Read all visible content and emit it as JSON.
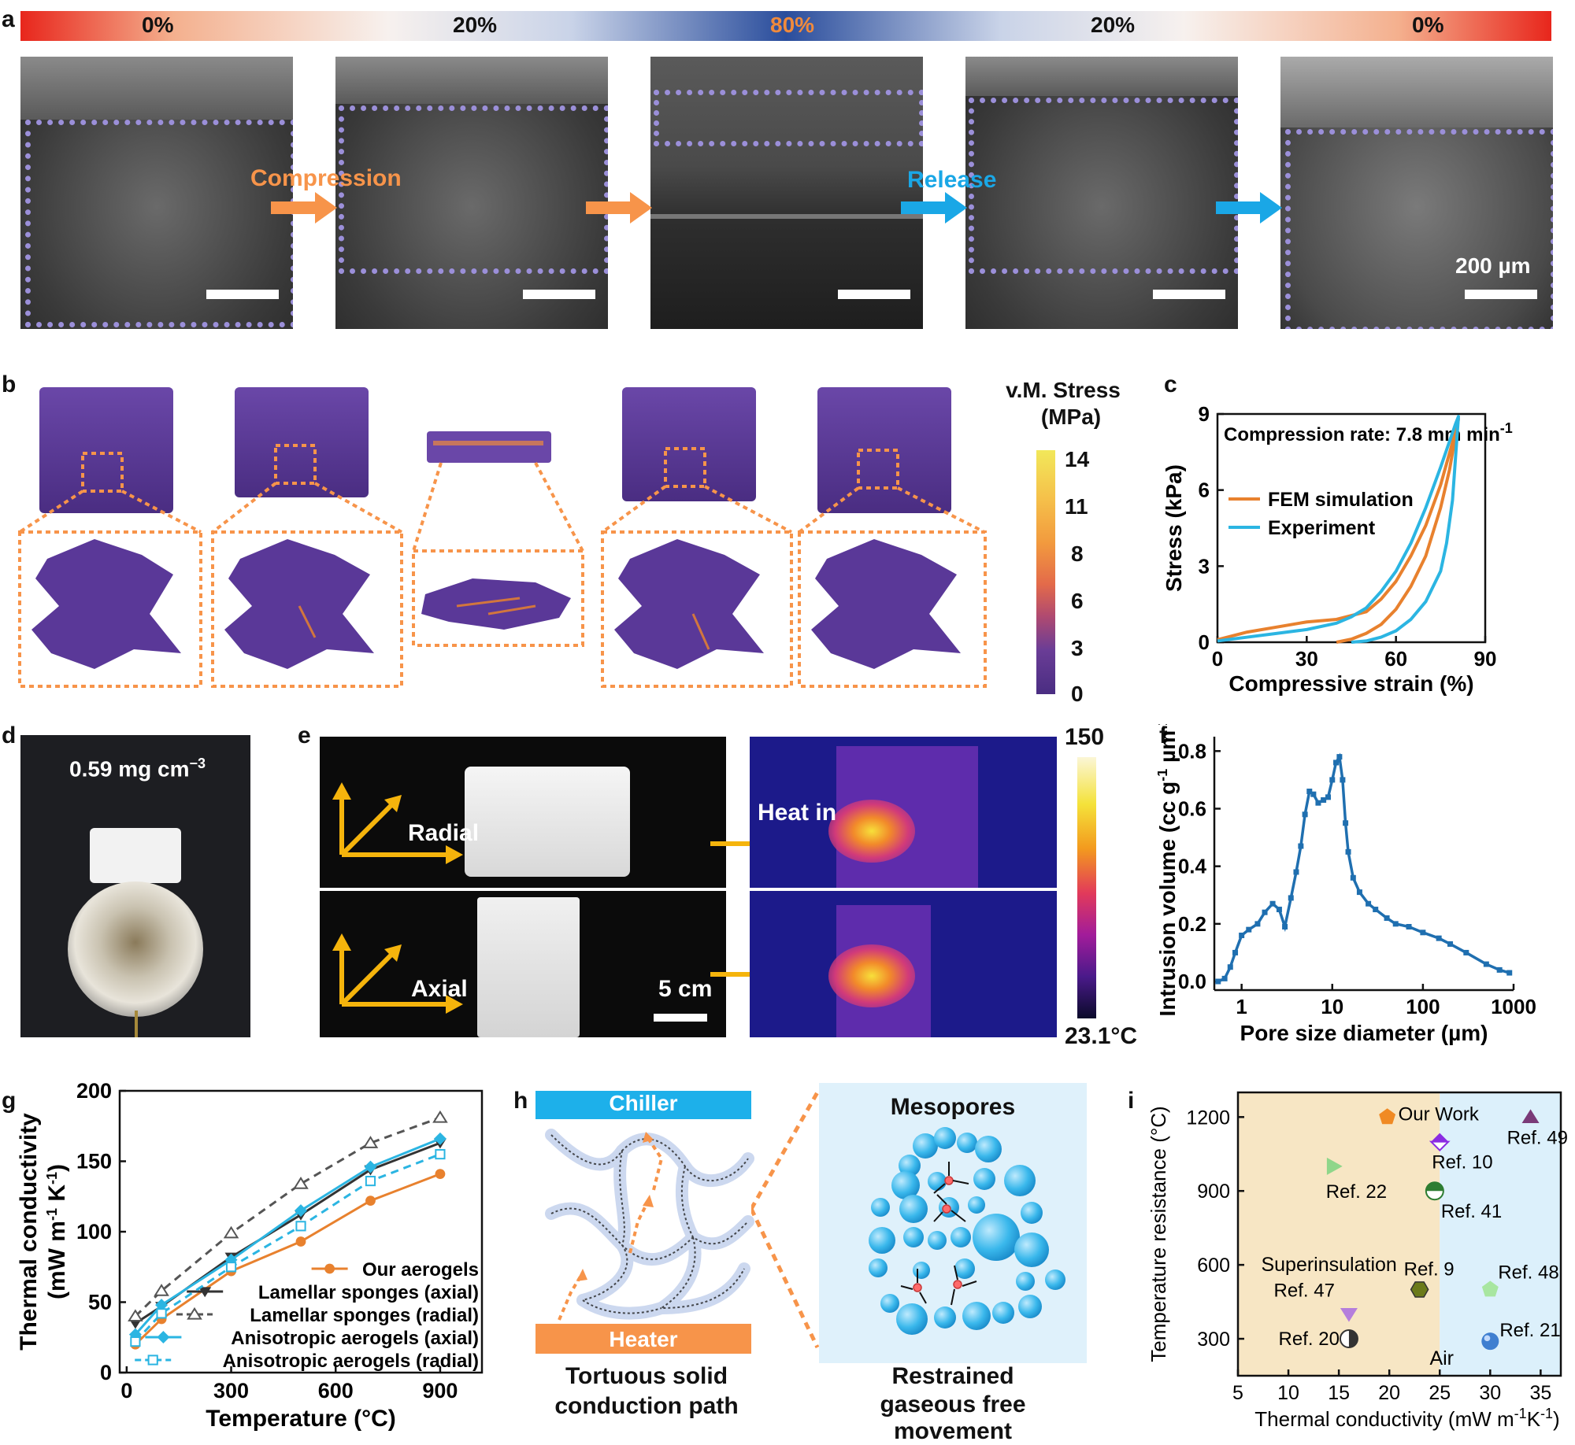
{
  "panel_labels": [
    "a",
    "b",
    "c",
    "d",
    "e",
    "f",
    "g",
    "h",
    "i"
  ],
  "panel_a": {
    "strain_labels": [
      "0%",
      "20%",
      "80%",
      "20%",
      "0%"
    ],
    "strain_colors": [
      "#111111",
      "#111111",
      "#f08a3c",
      "#111111",
      "#111111"
    ],
    "compression_label": "Compression",
    "release_label": "Release",
    "scale_label": "200 µm",
    "accent_orange": "#f7944a",
    "accent_blue": "#1aa7e6",
    "frame_color": "#9b8fd9"
  },
  "panel_b": {
    "colorbar_title_1": "v.M. Stress",
    "colorbar_title_2": "(MPa)",
    "colorbar_ticks": [
      "14",
      "11",
      "8",
      "6",
      "3",
      "0"
    ]
  },
  "chart_data": [
    {
      "id": "c",
      "type": "line",
      "annotation_prefix": "Compression rate: 7.8 mm min",
      "annotation_sup": "-1",
      "xlabel": "Compressive strain (%)",
      "ylabel": "Stress (kPa)",
      "xlim": [
        0,
        90
      ],
      "ylim": [
        0,
        9
      ],
      "xticks": [
        "0",
        "30",
        "60",
        "90"
      ],
      "yticks": [
        "0",
        "3",
        "6",
        "9"
      ],
      "legend": [
        "FEM simulation",
        "Experiment"
      ],
      "series": [
        {
          "name": "FEM simulation",
          "color": "#e8812e",
          "x": [
            0,
            10,
            20,
            30,
            40,
            50,
            55,
            60,
            65,
            70,
            75,
            80,
            81,
            78,
            75,
            70,
            65,
            60,
            55,
            50,
            45,
            40
          ],
          "y": [
            0.1,
            0.4,
            0.6,
            0.8,
            0.9,
            1.2,
            1.7,
            2.4,
            3.4,
            4.6,
            6.2,
            8.3,
            8.8,
            6.8,
            5.3,
            3.4,
            2.2,
            1.3,
            0.7,
            0.35,
            0.12,
            0
          ]
        },
        {
          "name": "Experiment",
          "color": "#2bb5e2",
          "x": [
            0,
            10,
            20,
            30,
            40,
            45,
            50,
            55,
            60,
            65,
            70,
            75,
            80,
            81,
            79,
            77,
            75,
            70,
            65,
            60,
            55,
            50,
            45
          ],
          "y": [
            0.05,
            0.2,
            0.35,
            0.5,
            0.75,
            1.0,
            1.35,
            2.0,
            2.8,
            3.9,
            5.3,
            6.9,
            8.6,
            8.9,
            5.6,
            3.9,
            2.8,
            1.6,
            0.9,
            0.45,
            0.2,
            0.05,
            0
          ]
        }
      ]
    },
    {
      "id": "f",
      "type": "line",
      "xlabel": "Pore size diameter (µm)",
      "ylabel_prefix": "Intrusion volume (cc g",
      "ylabel_sup1": "-1",
      "ylabel_mid": " µm",
      "ylabel_sup2": "-1",
      "ylabel_suffix": ")",
      "xscale": "log",
      "xlim": [
        0.5,
        1000
      ],
      "ylim": [
        -0.03,
        0.85
      ],
      "xticks": [
        "1",
        "10",
        "100",
        "1000"
      ],
      "yticks": [
        "0.0",
        "0.2",
        "0.4",
        "0.6",
        "0.8"
      ],
      "series": [
        {
          "name": "Intrusion volume",
          "color": "#1f6fb0",
          "x": [
            0.55,
            0.65,
            0.75,
            0.85,
            1.0,
            1.2,
            1.5,
            1.8,
            2.2,
            2.6,
            3.0,
            3.5,
            4.0,
            4.5,
            5.0,
            5.6,
            6.2,
            7.0,
            8.0,
            9.0,
            10.0,
            11.0,
            12.0,
            13.0,
            14.0,
            15.0,
            17.0,
            20.0,
            25.0,
            30.0,
            40.0,
            50.0,
            70.0,
            100.0,
            150.0,
            200.0,
            300.0,
            500.0,
            700.0,
            900.0
          ],
          "y": [
            0.0,
            0.01,
            0.05,
            0.1,
            0.16,
            0.18,
            0.2,
            0.24,
            0.27,
            0.25,
            0.19,
            0.29,
            0.38,
            0.47,
            0.58,
            0.66,
            0.65,
            0.62,
            0.63,
            0.64,
            0.7,
            0.76,
            0.78,
            0.7,
            0.55,
            0.45,
            0.36,
            0.31,
            0.27,
            0.25,
            0.22,
            0.2,
            0.19,
            0.17,
            0.15,
            0.13,
            0.1,
            0.06,
            0.04,
            0.03
          ]
        }
      ]
    },
    {
      "id": "g",
      "type": "line",
      "xlabel": "Temperature (°C)",
      "ylabel_prefix": "Thermal conductivity",
      "ylabel_unit_a": "(mW m",
      "ylabel_sup1": "-1",
      "ylabel_unit_b": " K",
      "ylabel_sup2": "-1",
      "ylabel_unit_c": ")",
      "xlim": [
        -20,
        1020
      ],
      "ylim": [
        0,
        200
      ],
      "xticks": [
        "0",
        "300",
        "600",
        "900"
      ],
      "yticks": [
        "0",
        "50",
        "100",
        "150",
        "200"
      ],
      "x": [
        25,
        100,
        300,
        500,
        700,
        900
      ],
      "series": [
        {
          "name": "Our aerogels",
          "color": "#e8812e",
          "dash": "solid",
          "marker": "circle",
          "values": [
            20,
            38,
            72,
            93,
            122,
            141
          ]
        },
        {
          "name": "Lamellar sponges (axial)",
          "color": "#333333",
          "dash": "solid",
          "marker": "tri-down",
          "values": [
            35,
            47,
            82,
            112,
            144,
            163
          ]
        },
        {
          "name": "Lamellar sponges (radial)",
          "color": "#555555",
          "dash": "dashed",
          "marker": "tri-up-open",
          "values": [
            40,
            58,
            99,
            134,
            163,
            181
          ]
        },
        {
          "name": "Anisotropic aerogels (axial)",
          "color": "#2bb5e2",
          "dash": "solid",
          "marker": "diamond",
          "values": [
            27,
            48,
            80,
            115,
            146,
            166
          ]
        },
        {
          "name": "Anisotropic aerogels (radial)",
          "color": "#2bb5e2",
          "dash": "dashed",
          "marker": "square-open",
          "values": [
            22,
            42,
            75,
            104,
            136,
            155
          ]
        }
      ]
    },
    {
      "id": "i",
      "type": "scatter",
      "xlabel_prefix": "Thermal conductivity (mW m",
      "xlabel_sup1": "-1",
      "xlabel_mid": "K",
      "xlabel_sup2": "-1",
      "xlabel_suffix": ")",
      "ylabel": "Temperature resistance (°C)",
      "xlim": [
        5,
        37
      ],
      "ylim": [
        150,
        1300
      ],
      "xticks": [
        "5",
        "10",
        "15",
        "20",
        "25",
        "30",
        "35"
      ],
      "yticks": [
        "300",
        "600",
        "900",
        "1200"
      ],
      "region_split": 25,
      "region_left_label": "Superinsulation",
      "region_right_label": "Air",
      "points": [
        {
          "label": "Our Work",
          "x": 19.8,
          "y": 1200,
          "color": "#f08a24",
          "marker": "pentagon"
        },
        {
          "label": "Ref. 49",
          "x": 34,
          "y": 1200,
          "color": "#7a3a78",
          "marker": "tri-up"
        },
        {
          "label": "Ref. 10",
          "x": 25,
          "y": 1100,
          "color": "#8a2be2",
          "marker": "diamond-half"
        },
        {
          "label": "Ref. 22",
          "x": 14.5,
          "y": 1000,
          "color": "#8fd68a",
          "marker": "tri-right"
        },
        {
          "label": "Ref. 41",
          "x": 24.5,
          "y": 900,
          "color": "#2e7d32",
          "marker": "circle-half"
        },
        {
          "label": "Ref. 9",
          "x": 23,
          "y": 500,
          "color": "#6b7a1a",
          "marker": "hexagon"
        },
        {
          "label": "Ref. 48",
          "x": 30,
          "y": 500,
          "color": "#a8e6a0",
          "marker": "pentagon"
        },
        {
          "label": "Ref. 47",
          "x": 16,
          "y": 400,
          "color": "#b57edc",
          "marker": "tri-down"
        },
        {
          "label": "Ref. 20",
          "x": 16,
          "y": 300,
          "color": "#333333",
          "marker": "circle-half-lr"
        },
        {
          "label": "Ref. 21",
          "x": 30,
          "y": 290,
          "color": "#3f7fd0",
          "marker": "sphere"
        }
      ]
    }
  ],
  "panel_d": {
    "density_label": "0.59 mg cm",
    "density_sup": "−3"
  },
  "panel_e": {
    "radial_label": "Radial",
    "axial_label": "Axial",
    "heat_label": "Heat in",
    "scale_label": "5 cm",
    "cbar_max": "150",
    "cbar_min": "23.1°C"
  },
  "panel_h": {
    "chiller_label": "Chiller",
    "heater_label": "Heater",
    "mesopores_label": "Mesopores",
    "caption_left_1": "Tortuous solid",
    "caption_left_2": "conduction path",
    "caption_right_1": "Restrained",
    "caption_right_2": "gaseous free",
    "caption_right_3": "movement"
  }
}
